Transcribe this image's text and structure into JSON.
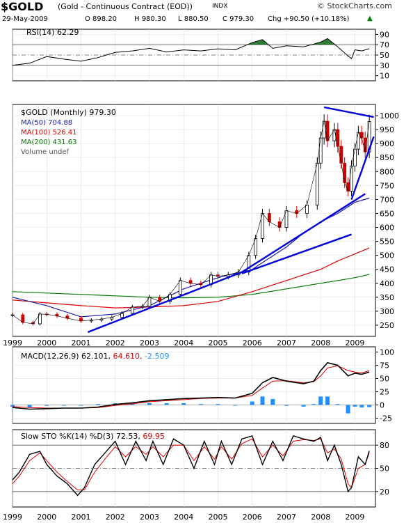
{
  "header": {
    "symbol": "$GOLD",
    "description": "(Gold - Continuous Contract (EOD))",
    "exchange": "INDX",
    "brand": "© StockCharts.com",
    "date": "29-May-2009",
    "open": "O 898.20",
    "high": "H 980.30",
    "low": "L 880.50",
    "close": "C 979.30",
    "change": "Chg +90.50 (+10.18%)",
    "change_arrow": "▲",
    "up_color": "#008000"
  },
  "colors": {
    "price_up": "#000000",
    "price_down": "#cc0000",
    "ma50": "#1a1aaa",
    "ma100": "#dd0000",
    "ma200": "#007700",
    "trendline": "#0000dd",
    "rsi_fill": "#2e7d32",
    "macd_hist": "#1e90ff",
    "stoch_d": "#dd0000"
  },
  "chart_data": [
    {
      "type": "line",
      "panel": "rsi",
      "legend": "RSI(14) 62.29",
      "y_ticks": [
        10,
        30,
        50,
        70,
        90
      ],
      "ylim": [
        0,
        100
      ],
      "overbought": 70,
      "oversold": 30,
      "midline": 50,
      "x": [
        1999.0,
        1999.5,
        2000.0,
        2000.5,
        2001.0,
        2001.5,
        2002.0,
        2002.5,
        2003.0,
        2003.5,
        2004.0,
        2004.5,
        2005.0,
        2005.5,
        2006.0,
        2006.3,
        2006.6,
        2007.0,
        2007.5,
        2008.0,
        2008.2,
        2008.5,
        2008.8,
        2008.9,
        2009.0,
        2009.2,
        2009.42
      ],
      "values": [
        30,
        34,
        47,
        42,
        38,
        45,
        55,
        58,
        63,
        56,
        60,
        58,
        62,
        60,
        74,
        80,
        63,
        68,
        66,
        75,
        82,
        66,
        48,
        43,
        60,
        58,
        62.29
      ]
    },
    {
      "type": "line",
      "panel": "price",
      "legend_title": "$GOLD (Monthly) 979.30",
      "legend": [
        {
          "name": "MA(50) 704.88",
          "color": "#1a1aaa"
        },
        {
          "name": "MA(100) 526.41",
          "color": "#dd0000"
        },
        {
          "name": "MA(200) 431.63",
          "color": "#007700"
        },
        {
          "name": "Volume undef",
          "color": "#555555"
        }
      ],
      "y_ticks": [
        250,
        300,
        350,
        400,
        450,
        500,
        550,
        600,
        650,
        700,
        750,
        800,
        850,
        900,
        950,
        1000
      ],
      "ylim": [
        210,
        1040
      ],
      "x_ticks": [
        "1999",
        "2000",
        "2001",
        "2002",
        "2003",
        "2004",
        "2005",
        "2006",
        "2007",
        "2008",
        "2009"
      ],
      "close_x": [
        1999.0,
        1999.3,
        1999.6,
        1999.8,
        2000.0,
        2000.3,
        2000.6,
        2001.0,
        2001.3,
        2001.6,
        2001.9,
        2002.2,
        2002.5,
        2002.8,
        2003.0,
        2003.3,
        2003.6,
        2003.9,
        2004.2,
        2004.5,
        2004.8,
        2005.0,
        2005.3,
        2005.6,
        2005.9,
        2006.1,
        2006.3,
        2006.5,
        2006.8,
        2007.0,
        2007.3,
        2007.6,
        2007.9,
        2008.0,
        2008.1,
        2008.2,
        2008.4,
        2008.5,
        2008.6,
        2008.7,
        2008.8,
        2008.9,
        2009.0,
        2009.1,
        2009.2,
        2009.3,
        2009.42
      ],
      "close": [
        287,
        260,
        255,
        290,
        289,
        283,
        275,
        265,
        268,
        272,
        278,
        292,
        315,
        318,
        350,
        335,
        360,
        410,
        400,
        395,
        430,
        425,
        430,
        440,
        500,
        560,
        650,
        620,
        600,
        660,
        650,
        680,
        830,
        920,
        980,
        910,
        950,
        890,
        830,
        760,
        730,
        820,
        880,
        940,
        920,
        870,
        979.3
      ],
      "ma50_x": [
        1999.0,
        2000.0,
        2001.0,
        2002.0,
        2003.0,
        2004.0,
        2005.0,
        2006.0,
        2007.0,
        2007.5,
        2008.0,
        2008.5,
        2009.0,
        2009.42
      ],
      "ma50": [
        350,
        320,
        280,
        290,
        320,
        380,
        420,
        450,
        530,
        580,
        620,
        650,
        690,
        704.88
      ],
      "ma100_x": [
        1999.0,
        2000.0,
        2001.0,
        2002.0,
        2003.0,
        2004.0,
        2005.0,
        2006.0,
        2007.0,
        2008.0,
        2008.5,
        2009.0,
        2009.42
      ],
      "ma100": [
        340,
        330,
        320,
        312,
        315,
        320,
        335,
        370,
        410,
        450,
        480,
        505,
        526.41
      ],
      "ma200_x": [
        1999.0,
        2000.0,
        2001.0,
        2002.0,
        2003.0,
        2004.0,
        2005.0,
        2006.0,
        2007.0,
        2008.0,
        2008.5,
        2009.0,
        2009.42
      ],
      "ma200": [
        370,
        365,
        360,
        355,
        350,
        348,
        350,
        360,
        380,
        400,
        410,
        420,
        431.63
      ],
      "trendlines": [
        {
          "x1": 2001.2,
          "y1": 225,
          "x2": 2005.7,
          "y2": 440
        },
        {
          "x1": 2005.7,
          "y1": 440,
          "x2": 2009.3,
          "y2": 720
        },
        {
          "x1": 2005.7,
          "y1": 435,
          "x2": 2008.9,
          "y2": 575
        },
        {
          "x1": 2008.9,
          "y1": 700,
          "x2": 2009.55,
          "y2": 925
        },
        {
          "x1": 2008.1,
          "y1": 1030,
          "x2": 2009.55,
          "y2": 995
        }
      ]
    },
    {
      "type": "line",
      "panel": "macd",
      "legend": "MACD(12,26,9) 62.101, 64.610, -2.509",
      "legend_parts": [
        "MACD(12,26,9) 62.101,",
        "64.610,",
        "-2.509"
      ],
      "y_ticks": [
        -25,
        0,
        25,
        50,
        75,
        100
      ],
      "ylim": [
        -35,
        110
      ],
      "x": [
        1999.0,
        1999.5,
        2000.0,
        2000.5,
        2001.0,
        2001.5,
        2002.0,
        2002.5,
        2003.0,
        2003.5,
        2004.0,
        2004.5,
        2005.0,
        2005.5,
        2006.0,
        2006.3,
        2006.6,
        2007.0,
        2007.5,
        2007.8,
        2008.0,
        2008.2,
        2008.5,
        2008.8,
        2009.0,
        2009.2,
        2009.42
      ],
      "macd": [
        -5,
        -8,
        -7,
        -6,
        -6,
        -4,
        1,
        4,
        8,
        10,
        12,
        13,
        14,
        13,
        22,
        42,
        52,
        45,
        40,
        45,
        65,
        80,
        75,
        55,
        60,
        58,
        62.1
      ],
      "signal": [
        -3,
        -5,
        -6,
        -6,
        -6,
        -5,
        -1,
        2,
        6,
        8,
        10,
        12,
        13,
        13,
        18,
        32,
        45,
        46,
        42,
        44,
        55,
        70,
        74,
        65,
        62,
        61,
        64.6
      ],
      "histogram_color": "#1e90ff"
    },
    {
      "type": "line",
      "panel": "stochastic",
      "legend": "Slow STO %K(14) %D(3) 72.53, 69.95",
      "legend_parts": [
        "Slow STO %K(14) %D(3) 72.53,",
        "69.95"
      ],
      "y_ticks": [
        20,
        50,
        80
      ],
      "ylim": [
        0,
        100
      ],
      "x": [
        1999.0,
        1999.2,
        1999.5,
        1999.8,
        2000.0,
        2000.3,
        2000.6,
        2000.9,
        2001.1,
        2001.4,
        2001.7,
        2002.0,
        2002.3,
        2002.6,
        2002.9,
        2003.1,
        2003.4,
        2003.7,
        2004.0,
        2004.3,
        2004.6,
        2004.9,
        2005.1,
        2005.4,
        2005.7,
        2006.0,
        2006.3,
        2006.6,
        2006.9,
        2007.2,
        2007.5,
        2007.8,
        2008.0,
        2008.2,
        2008.4,
        2008.6,
        2008.8,
        2008.9,
        2009.1,
        2009.3,
        2009.42
      ],
      "k": [
        35,
        45,
        68,
        72,
        55,
        40,
        30,
        15,
        25,
        55,
        70,
        85,
        55,
        85,
        60,
        85,
        55,
        88,
        80,
        50,
        85,
        55,
        85,
        55,
        88,
        92,
        55,
        85,
        60,
        92,
        88,
        85,
        90,
        60,
        80,
        55,
        20,
        25,
        65,
        55,
        72.53
      ],
      "d": [
        30,
        40,
        60,
        70,
        60,
        45,
        33,
        22,
        22,
        45,
        62,
        78,
        65,
        78,
        68,
        78,
        65,
        80,
        80,
        60,
        78,
        62,
        78,
        62,
        82,
        88,
        65,
        80,
        66,
        85,
        87,
        86,
        88,
        70,
        75,
        62,
        30,
        25,
        50,
        55,
        69.95
      ],
      "level_lines": [
        80,
        50,
        20
      ]
    }
  ]
}
